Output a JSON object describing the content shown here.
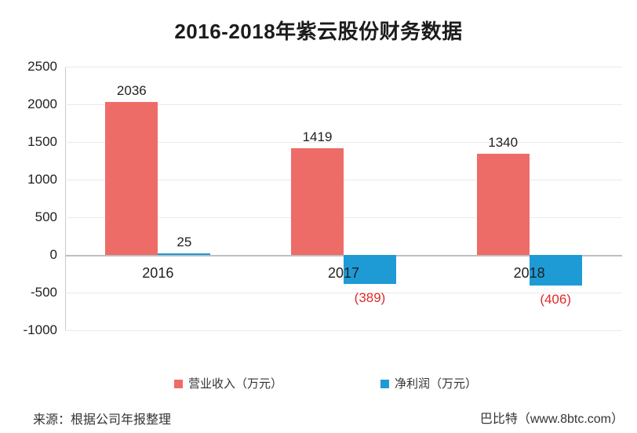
{
  "title": "2016-2018年紫云股份财务数据",
  "chart_data": {
    "type": "bar",
    "title": "2016-2018年紫云股份财务数据",
    "categories": [
      "2016",
      "2017",
      "2018"
    ],
    "series": [
      {
        "key": "revenue",
        "name": "营业收入（万元）",
        "color": "#ed6c68",
        "values": [
          2036,
          1419,
          1340
        ],
        "labels": [
          "2036",
          "1419",
          "1340"
        ]
      },
      {
        "key": "net-profit",
        "name": "净利润（万元）",
        "color": "#1e9bd5",
        "values": [
          25,
          -389,
          -406
        ],
        "labels": [
          "25",
          "(389)",
          "(406)"
        ]
      }
    ],
    "ylim": [
      -1000,
      2500
    ],
    "yticks": [
      {
        "label": "2500",
        "value": 2500
      },
      {
        "label": "2000",
        "value": 2000
      },
      {
        "label": "1500",
        "value": 1500
      },
      {
        "label": "1000",
        "value": 1000
      },
      {
        "label": "500",
        "value": 500
      },
      {
        "label": "0",
        "value": 0
      },
      {
        "label": "-500",
        "value": -500
      },
      {
        "label": "-1000",
        "value": -1000
      }
    ],
    "grid": true,
    "legend_position": "bottom",
    "negative_label_color": "#e02a2a",
    "gridline_color": "#eaeaea",
    "zero_line_color": "#bfbfbf"
  },
  "footer": {
    "source": "来源：根据公司年报整理",
    "brand": "巴比特（www.8btc.com）"
  }
}
